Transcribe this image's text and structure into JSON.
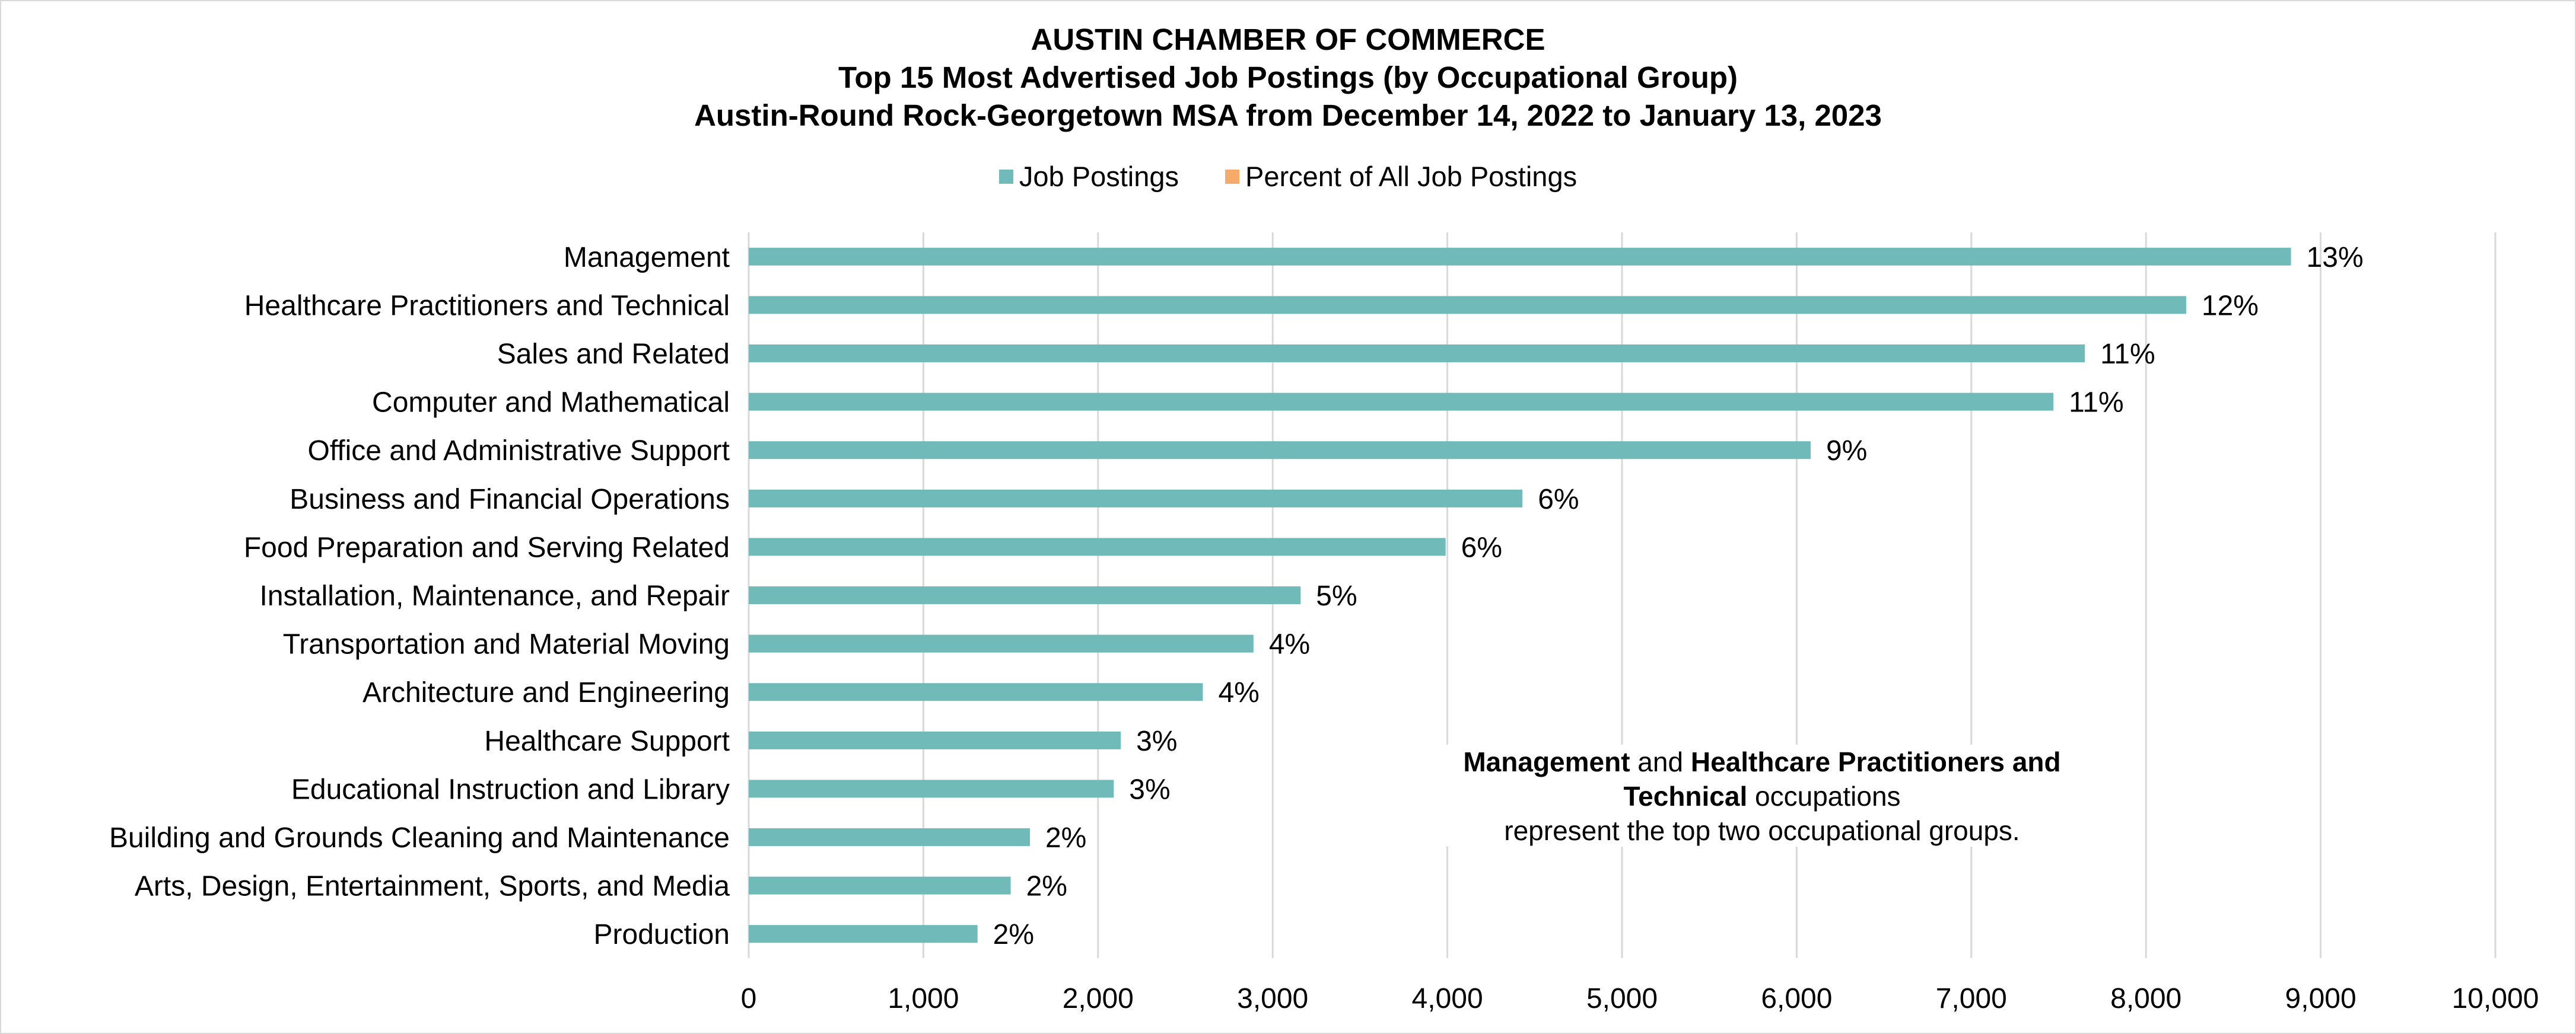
{
  "chart_data": {
    "type": "bar",
    "orientation": "horizontal",
    "title": [
      "AUSTIN CHAMBER OF COMMERCE",
      "Top 15 Most Advertised Job Postings (by Occupational Group)",
      "Austin-Round Rock-Georgetown MSA from December 14, 2022 to January 13, 2023"
    ],
    "legend": {
      "placement": "top-center",
      "items": [
        {
          "name": "Job Postings",
          "color": "#70bbb9"
        },
        {
          "name": "Percent of All Job Postings",
          "color": "#f6ab6b"
        }
      ]
    },
    "categories": [
      "Management",
      "Healthcare Practitioners and Technical",
      "Sales and Related",
      "Computer and Mathematical",
      "Office and Administrative Support",
      "Business and Financial Operations",
      "Food Preparation and Serving Related",
      "Installation, Maintenance, and Repair",
      "Transportation and Material Moving",
      "Architecture and Engineering",
      "Healthcare Support",
      "Educational Instruction and Library",
      "Building and Grounds Cleaning and Maintenance",
      "Arts, Design, Entertainment, Sports, and Media",
      "Production"
    ],
    "series": [
      {
        "name": "Job Postings",
        "color": "#70bbb9",
        "values": [
          8830,
          8230,
          7650,
          7470,
          6080,
          4430,
          3990,
          3160,
          2890,
          2600,
          2130,
          2090,
          1610,
          1500,
          1310
        ]
      },
      {
        "name": "Percent of All Job Postings",
        "color": "#f6ab6b",
        "labels": [
          "13%",
          "12%",
          "11%",
          "11%",
          "9%",
          "6%",
          "6%",
          "5%",
          "4%",
          "4%",
          "3%",
          "3%",
          "2%",
          "2%",
          "2%"
        ]
      }
    ],
    "xlim": [
      0,
      10000
    ],
    "x_ticks": [
      0,
      1000,
      2000,
      3000,
      4000,
      5000,
      6000,
      7000,
      8000,
      9000,
      10000
    ],
    "x_tick_labels": [
      "0",
      "1,000",
      "2,000",
      "3,000",
      "4,000",
      "5,000",
      "6,000",
      "7,000",
      "8,000",
      "9,000",
      "10,000"
    ],
    "grid": "vertical",
    "annotation": {
      "parts": [
        {
          "text": "Management",
          "bold": true
        },
        {
          "text": " and ",
          "bold": false
        },
        {
          "text": "Healthcare Practitioners and Technical",
          "bold": true
        },
        {
          "text": " occupations",
          "bold": false
        }
      ],
      "line2": "represent the top two occupational groups."
    }
  }
}
